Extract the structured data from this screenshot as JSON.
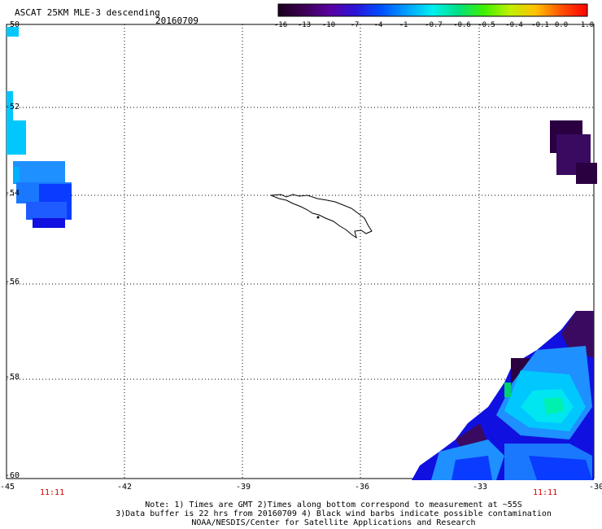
{
  "header": {
    "title": "ASCAT 25KM MLE-3 descending",
    "date": "20160709"
  },
  "colorbar": {
    "tick_labels": [
      "-16",
      "-13",
      "-10",
      "-7",
      "-4",
      "-1",
      "-0.7",
      "-0.6",
      "-0.5",
      "-0.4",
      "-0.1",
      "0.0",
      "1.0"
    ],
    "colors": [
      "#1a0020",
      "#3d0054",
      "#5a00a0",
      "#2a14d8",
      "#0050ff",
      "#00a0ff",
      "#00f0f0",
      "#00e080",
      "#40f000",
      "#c0f000",
      "#ffc000",
      "#ff5000",
      "#ff0000"
    ]
  },
  "axes": {
    "lat_labels": [
      "-50",
      "-52",
      "-54",
      "-56",
      "-58",
      "-60"
    ],
    "lon_labels": [
      "-45",
      "-42",
      "-39",
      "-36",
      "-33",
      "-30"
    ],
    "time_labels": [
      "11:11",
      "11:11"
    ]
  },
  "map": {
    "lat_range": [
      -60,
      -50
    ],
    "lon_range": [
      -45,
      -30
    ],
    "grid": "dotted",
    "coastline": "South Georgia",
    "colors": {
      "light_cyan": "#00c8ff",
      "sky_blue": "#1e90ff",
      "blue": "#0a3cff",
      "deep_blue": "#1010e0",
      "purple": "#3a0a60",
      "dark_purple": "#2a0040",
      "cyan": "#00e6f0",
      "green_cyan": "#00f0b0",
      "green": "#00d070"
    }
  },
  "notes": {
    "line1": "Note: 1) Times are GMT 2)Times along bottom correspond to measurement at ~55S",
    "line2": "3)Data buffer is 22 hrs from 20160709 4) Black wind barbs indicate possible contamination",
    "line3": "NOAA/NESDIS/Center for Satellite Applications and Research"
  }
}
